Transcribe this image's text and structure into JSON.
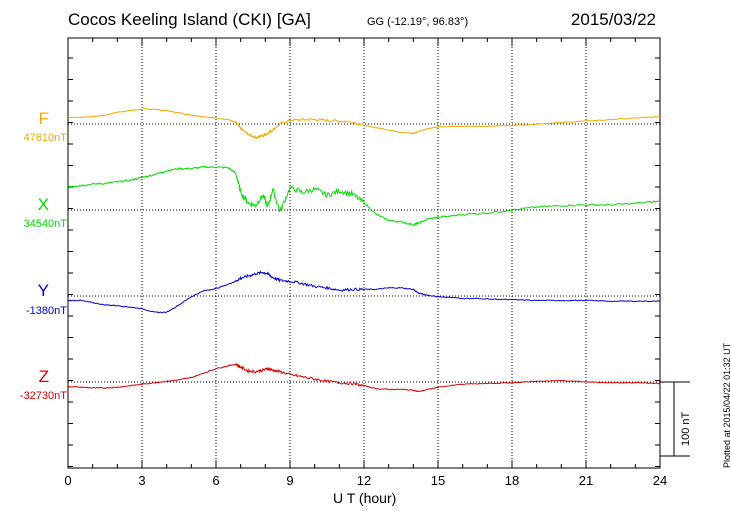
{
  "header": {
    "title": "Cocos Keeling Island (CKI)  [GA]",
    "coords": "GG (-12.19°,  96.83°)",
    "date": "2015/03/22"
  },
  "plotted_note": "Plotted at 2015/04/22 01:32 UT",
  "chart_data": {
    "type": "line",
    "title": "Cocos Keeling Island (CKI)  [GA]",
    "xlabel": "U T (hour)",
    "xlim": [
      0,
      24
    ],
    "xticks": [
      "0",
      "3",
      "6",
      "9",
      "12",
      "15",
      "18",
      "21",
      "24"
    ],
    "grid": true,
    "scale_bar": {
      "label": "100 nT",
      "value_nT": 100
    },
    "series": [
      {
        "name": "F",
        "baseline": "47610nT",
        "color": "#f5a800",
        "x": [
          0,
          0.5,
          1,
          1.5,
          2,
          2.5,
          3,
          3.5,
          4,
          4.5,
          5,
          5.5,
          6,
          6.5,
          6.8,
          7,
          7.3,
          7.6,
          7.9,
          8.1,
          8.3,
          8.6,
          9,
          9.5,
          10,
          10.5,
          11,
          11.5,
          12,
          12.5,
          13,
          13.5,
          14,
          14.2,
          14.6,
          15,
          16,
          17,
          18,
          19,
          20,
          21,
          22,
          23,
          24
        ],
        "y": [
          9,
          9,
          10,
          12,
          16,
          18,
          20,
          20,
          18,
          15,
          12,
          10,
          8,
          6,
          2,
          -6,
          -14,
          -18,
          -16,
          -12,
          -8,
          0,
          5,
          6,
          6,
          5,
          4,
          3,
          -2,
          -5,
          -8,
          -11,
          -13,
          -10,
          -6,
          -4,
          -3,
          -3,
          -2,
          0,
          2,
          4,
          6,
          8,
          10
        ]
      },
      {
        "name": "X",
        "baseline": "34540nT",
        "color": "#00dd00",
        "x": [
          0,
          0.5,
          1,
          1.5,
          2,
          2.5,
          3,
          3.5,
          4,
          4.5,
          5,
          5.5,
          6,
          6.5,
          6.8,
          7,
          7.3,
          7.6,
          7.9,
          8.1,
          8.3,
          8.6,
          9,
          9.5,
          10,
          10.5,
          11,
          11.5,
          12,
          12.5,
          13,
          13.5,
          14,
          14.2,
          14.6,
          15,
          16,
          17,
          18,
          19,
          20,
          21,
          22,
          23,
          24
        ],
        "y": [
          32,
          33,
          35,
          36,
          38,
          40,
          44,
          48,
          53,
          56,
          56,
          58,
          58,
          57,
          50,
          24,
          10,
          6,
          20,
          4,
          28,
          -2,
          30,
          24,
          28,
          20,
          26,
          22,
          10,
          -6,
          -14,
          -16,
          -20,
          -18,
          -12,
          -10,
          -6,
          -4,
          0,
          4,
          6,
          7,
          7,
          9,
          12
        ]
      },
      {
        "name": "Y",
        "baseline": "-1380nT",
        "color": "#0000dd",
        "x": [
          0,
          0.5,
          1,
          1.5,
          2,
          2.5,
          3,
          3.5,
          4,
          4.5,
          5,
          5.5,
          6,
          6.5,
          6.8,
          7,
          7.3,
          7.6,
          7.9,
          8.1,
          8.3,
          8.6,
          9,
          9.5,
          10,
          10.5,
          11,
          11.5,
          12,
          12.5,
          13,
          13.5,
          14,
          14.2,
          14.6,
          15,
          16,
          17,
          18,
          19,
          20,
          21,
          22,
          23,
          24
        ],
        "y": [
          -6,
          -6,
          -9,
          -12,
          -13,
          -15,
          -17,
          -22,
          -22,
          -12,
          -1,
          7,
          10,
          16,
          20,
          24,
          27,
          30,
          32,
          30,
          25,
          21,
          20,
          17,
          13,
          11,
          8,
          9,
          9,
          9,
          11,
          11,
          9,
          4,
          1,
          -1,
          -3,
          -4,
          -5,
          -6,
          -6,
          -6,
          -7,
          -7,
          -7
        ]
      },
      {
        "name": "Z",
        "baseline": "-32730nT",
        "color": "#dd0000",
        "x": [
          0,
          0.5,
          1,
          1.5,
          2,
          2.5,
          3,
          3.5,
          4,
          4.5,
          5,
          5.5,
          6,
          6.5,
          6.8,
          7,
          7.3,
          7.6,
          7.9,
          8.1,
          8.3,
          8.6,
          9,
          9.5,
          10,
          10.5,
          11,
          11.5,
          12,
          12.5,
          13,
          13.5,
          14,
          14.2,
          14.6,
          15,
          16,
          17,
          18,
          19,
          20,
          21,
          22,
          23,
          24
        ],
        "y": [
          -6,
          -7,
          -8,
          -8,
          -7,
          -5,
          -3,
          -1,
          1,
          3,
          6,
          12,
          18,
          22,
          24,
          20,
          15,
          14,
          16,
          18,
          16,
          14,
          10,
          7,
          4,
          1,
          -1,
          -2,
          -5,
          -9,
          -10,
          -10,
          -11,
          -13,
          -10,
          -7,
          -3,
          -2,
          -1,
          1,
          2,
          0,
          -1,
          -1,
          -2
        ]
      }
    ]
  }
}
